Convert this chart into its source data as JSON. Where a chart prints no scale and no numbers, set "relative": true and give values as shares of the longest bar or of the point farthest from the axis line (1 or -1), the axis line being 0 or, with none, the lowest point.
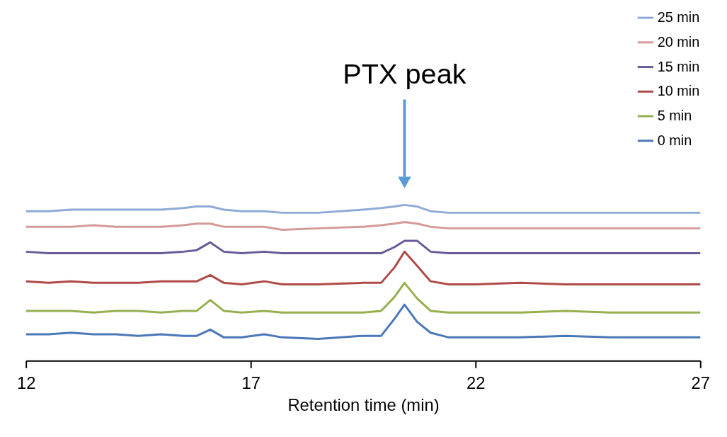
{
  "chart_data": {
    "type": "line",
    "relative": true,
    "xlabel": "Retention time (min)",
    "xlim": [
      12,
      27
    ],
    "xticks": [
      12,
      17,
      22,
      27
    ],
    "grid": false,
    "legend": "top right",
    "line_style": "solid",
    "marker": "none",
    "annotations": [
      "PTX peak"
    ],
    "x": [
      12,
      12.5,
      13,
      13.5,
      14,
      14.5,
      15,
      15.5,
      15.8,
      16.1,
      16.4,
      16.8,
      17.3,
      17.7,
      18.5,
      19.5,
      19.9,
      20.2,
      20.42,
      20.7,
      21.0,
      21.4,
      22,
      23,
      24,
      25,
      26,
      27
    ],
    "series": [
      {
        "name": "25 min",
        "color": "#8eaad6",
        "values": [
          0.96,
          0.96,
          0.97,
          0.97,
          0.97,
          0.97,
          0.97,
          0.98,
          0.99,
          0.99,
          0.97,
          0.96,
          0.96,
          0.95,
          0.95,
          0.97,
          0.98,
          0.99,
          1.0,
          0.99,
          0.96,
          0.95,
          0.95,
          0.95,
          0.95,
          0.95,
          0.95,
          0.95
        ]
      },
      {
        "name": "20 min",
        "color": "#d49a98",
        "values": [
          0.86,
          0.86,
          0.86,
          0.87,
          0.86,
          0.86,
          0.86,
          0.87,
          0.88,
          0.88,
          0.86,
          0.86,
          0.86,
          0.84,
          0.85,
          0.86,
          0.87,
          0.88,
          0.89,
          0.88,
          0.86,
          0.85,
          0.85,
          0.85,
          0.85,
          0.85,
          0.85,
          0.85
        ]
      },
      {
        "name": "15 min",
        "color": "#6a5a9a",
        "values": [
          0.7,
          0.69,
          0.69,
          0.69,
          0.69,
          0.69,
          0.69,
          0.7,
          0.71,
          0.76,
          0.7,
          0.69,
          0.7,
          0.69,
          0.69,
          0.69,
          0.69,
          0.73,
          0.77,
          0.77,
          0.7,
          0.69,
          0.69,
          0.69,
          0.69,
          0.69,
          0.69,
          0.69
        ]
      },
      {
        "name": "10 min",
        "color": "#b04a48",
        "values": [
          0.51,
          0.5,
          0.51,
          0.5,
          0.5,
          0.5,
          0.51,
          0.51,
          0.51,
          0.55,
          0.5,
          0.49,
          0.51,
          0.49,
          0.49,
          0.5,
          0.5,
          0.6,
          0.7,
          0.61,
          0.51,
          0.49,
          0.49,
          0.5,
          0.49,
          0.49,
          0.49,
          0.49
        ]
      },
      {
        "name": "5 min",
        "color": "#96b050",
        "values": [
          0.32,
          0.32,
          0.32,
          0.31,
          0.32,
          0.32,
          0.31,
          0.32,
          0.32,
          0.39,
          0.32,
          0.31,
          0.32,
          0.31,
          0.31,
          0.31,
          0.32,
          0.41,
          0.5,
          0.4,
          0.32,
          0.31,
          0.31,
          0.31,
          0.32,
          0.31,
          0.31,
          0.31
        ]
      },
      {
        "name": "0 min",
        "color": "#4a78b8",
        "values": [
          0.17,
          0.17,
          0.18,
          0.17,
          0.17,
          0.16,
          0.17,
          0.16,
          0.16,
          0.2,
          0.15,
          0.15,
          0.17,
          0.15,
          0.14,
          0.16,
          0.16,
          0.27,
          0.36,
          0.25,
          0.18,
          0.15,
          0.15,
          0.15,
          0.16,
          0.15,
          0.15,
          0.15
        ]
      }
    ]
  }
}
